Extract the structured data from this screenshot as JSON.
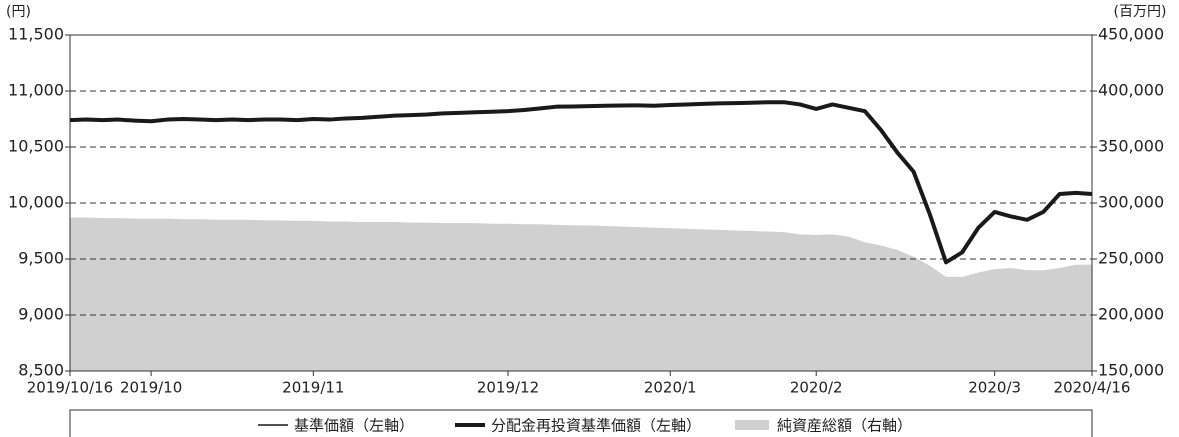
{
  "chart_data": {
    "type": "line",
    "y_unit": "(円)",
    "y2_unit": "(百万円)",
    "categories": [
      "2019/10/16",
      null,
      null,
      null,
      null,
      "2019/10",
      null,
      null,
      null,
      null,
      null,
      null,
      null,
      null,
      null,
      "2019/11",
      null,
      null,
      null,
      null,
      null,
      null,
      null,
      null,
      null,
      null,
      null,
      "2019/12",
      null,
      null,
      null,
      null,
      null,
      null,
      null,
      null,
      null,
      "2020/1",
      null,
      null,
      null,
      null,
      null,
      null,
      null,
      null,
      "2020/2",
      null,
      null,
      null,
      null,
      null,
      null,
      null,
      null,
      null,
      null,
      "2020/3",
      null,
      null,
      null,
      null,
      null,
      "2020/4/16"
    ],
    "series": [
      {
        "name": "純資産総額（右軸）",
        "color": "#d0d0d0",
        "axis": "y2",
        "style": "area",
        "values": [
          287000,
          287000,
          286500,
          286500,
          286000,
          286000,
          286000,
          285500,
          285500,
          285000,
          285000,
          285000,
          284500,
          284500,
          284000,
          284000,
          283500,
          283500,
          283000,
          283000,
          283000,
          282500,
          282500,
          282000,
          282000,
          282000,
          281500,
          281500,
          281000,
          281000,
          280500,
          280000,
          280000,
          279500,
          279000,
          278500,
          278000,
          277500,
          277000,
          276500,
          276000,
          275500,
          275000,
          274500,
          274000,
          272000,
          271500,
          272000,
          270000,
          265000,
          262000,
          258000,
          252000,
          244000,
          234000,
          234000,
          238000,
          241000,
          242000,
          240000,
          240000,
          242000,
          245000,
          245000
        ]
      },
      {
        "name": "分配金再投資基準価額（左軸）",
        "color": "#1a1a1a",
        "width": 4,
        "values": [
          10740,
          10745,
          10740,
          10745,
          10735,
          10730,
          10745,
          10750,
          10745,
          10740,
          10745,
          10740,
          10745,
          10745,
          10740,
          10750,
          10745,
          10755,
          10760,
          10770,
          10780,
          10785,
          10790,
          10800,
          10805,
          10810,
          10815,
          10820,
          10830,
          10845,
          10860,
          10862,
          10865,
          10868,
          10870,
          10872,
          10868,
          10875,
          10880,
          10885,
          10890,
          10892,
          10895,
          10900,
          10900,
          10880,
          10840,
          10880,
          10850,
          10820,
          10650,
          10450,
          10280,
          9900,
          9470,
          9560,
          9780,
          9920,
          9880,
          9850,
          9920,
          10080,
          10090,
          10080
        ]
      },
      {
        "name": "基準価額（左軸）",
        "color": "#1a1a1a",
        "width": 1.5,
        "values": [
          10740,
          10745,
          10740,
          10745,
          10735,
          10730,
          10745,
          10750,
          10745,
          10740,
          10745,
          10740,
          10745,
          10745,
          10740,
          10750,
          10745,
          10755,
          10760,
          10770,
          10780,
          10785,
          10790,
          10800,
          10805,
          10810,
          10815,
          10820,
          10830,
          10845,
          10860,
          10862,
          10865,
          10868,
          10870,
          10872,
          10868,
          10875,
          10880,
          10885,
          10890,
          10892,
          10895,
          10900,
          10900,
          10880,
          10840,
          10880,
          10850,
          10820,
          10650,
          10450,
          10280,
          9900,
          9470,
          9560,
          9780,
          9920,
          9880,
          9850,
          9920,
          10080,
          10090,
          10080
        ]
      }
    ],
    "legend_order": [
      2,
      1,
      0
    ],
    "ylim": [
      8500,
      11500
    ],
    "yticks": [
      {
        "value": 8500,
        "label": "8,500"
      },
      {
        "value": 9000,
        "label": "9,000"
      },
      {
        "value": 9500,
        "label": "9,500"
      },
      {
        "value": 10000,
        "label": "10,000"
      },
      {
        "value": 10500,
        "label": "10,500"
      },
      {
        "value": 11000,
        "label": "11,000"
      },
      {
        "value": 11500,
        "label": "11,500"
      }
    ],
    "y2lim": [
      150000,
      450000
    ],
    "y2ticks": [
      {
        "value": 150000,
        "label": "150,000"
      },
      {
        "value": 200000,
        "label": "200,000"
      },
      {
        "value": 250000,
        "label": "250,000"
      },
      {
        "value": 300000,
        "label": "300,000"
      },
      {
        "value": 350000,
        "label": "350,000"
      },
      {
        "value": 400000,
        "label": "400,000"
      },
      {
        "value": 450000,
        "label": "450,000"
      }
    ],
    "grid": true
  }
}
